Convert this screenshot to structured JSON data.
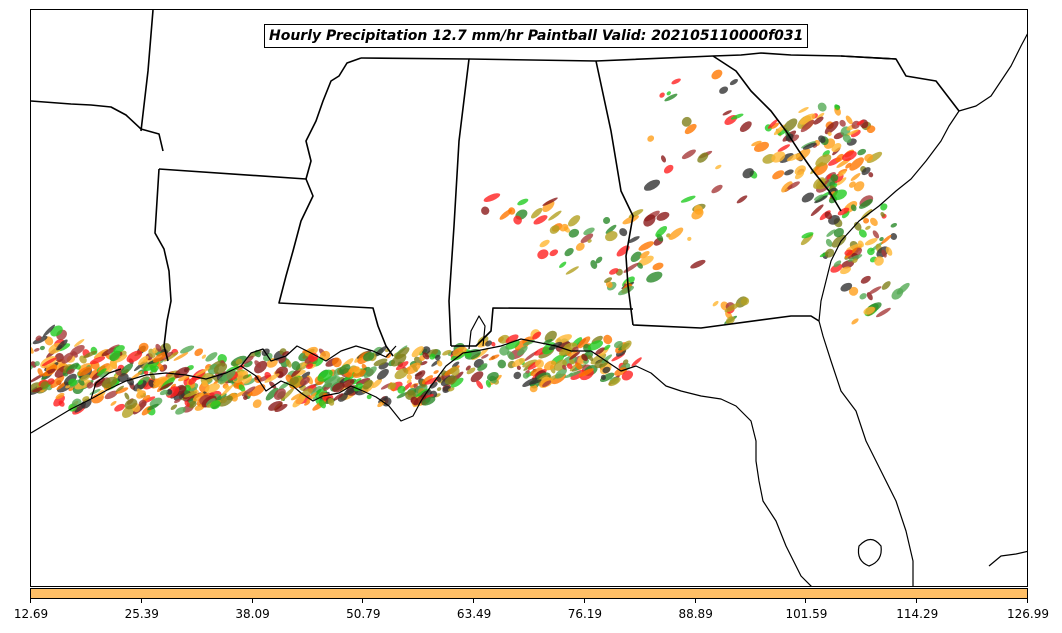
{
  "title": "Hourly Precipitation 12.7 mm/hr Paintball Valid: 202105110000f031",
  "colorbar": {
    "color": "#ffbf66",
    "tick_labels": [
      "12.69",
      "25.39",
      "38.09",
      "50.79",
      "63.49",
      "76.19",
      "88.89",
      "101.59",
      "114.29",
      "126.99"
    ]
  },
  "map": {
    "region": "Southeastern United States and Gulf Coast",
    "features": [
      "state-borders",
      "coastlines",
      "lakes"
    ],
    "member_colors": [
      "#ff2020",
      "#ff7700",
      "#ff9f1a",
      "#ffb732",
      "#22cc22",
      "#2a8a2a",
      "#8b1a1a",
      "#a63a3a",
      "#333333",
      "#7f7f1a",
      "#b3a020",
      "#55aa55"
    ]
  }
}
